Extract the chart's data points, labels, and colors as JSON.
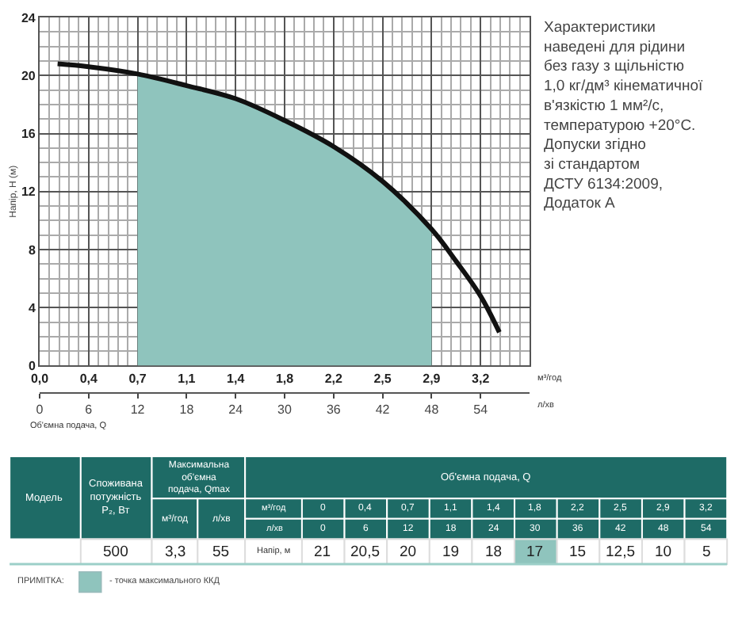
{
  "chart_data": {
    "type": "line",
    "x": [
      2.2,
      6,
      12,
      18,
      24,
      30,
      36,
      42,
      48,
      51,
      54,
      56.3
    ],
    "series": [
      {
        "type": "area",
        "color": "#8fc4bd",
        "x": [
          12,
          18,
          24,
          30,
          36,
          42,
          48
        ],
        "values": [
          20.1,
          19.3,
          18.4,
          16.9,
          15.1,
          12.7,
          9.4
        ]
      },
      {
        "color": "#111111",
        "values": [
          20.8,
          20.6,
          20.1,
          19.3,
          18.4,
          16.9,
          15.1,
          12.7,
          9.4,
          7.2,
          4.8,
          2.3
        ]
      }
    ],
    "xlabel": "Об'ємна подача, Q",
    "ylabel": "Напір, H (м)",
    "x2label": "м³/год",
    "xlim": [
      0,
      60
    ],
    "xticks": [
      0,
      6,
      12,
      18,
      24,
      30,
      36,
      42,
      48,
      54
    ],
    "x2lim": [
      0,
      3.6
    ],
    "x2ticks": [
      {
        "value": 0,
        "label": "0,0"
      },
      {
        "value": 0.36,
        "label": "0,4"
      },
      {
        "value": 0.72,
        "label": "0,7"
      },
      {
        "value": 1.08,
        "label": "1,1"
      },
      {
        "value": 1.44,
        "label": "1,4"
      },
      {
        "value": 1.8,
        "label": "1,8"
      },
      {
        "value": 2.16,
        "label": "2,2"
      },
      {
        "value": 2.52,
        "label": "2,5"
      },
      {
        "value": 2.88,
        "label": "2,9"
      },
      {
        "value": 3.24,
        "label": "3,2"
      }
    ],
    "ylim": [
      0,
      24
    ],
    "yticks": [
      0,
      4,
      8,
      12,
      16,
      20,
      24
    ],
    "grid": true,
    "annotations": [
      "Характеристики\nнаведені для рідини\nбез газу з щільністю\n1,0 кг/дм³ кінематичної\nв'язкістю 1 мм²/с,\nтемпературою +20°С.\nДопуски згідно\nзі стандартом\nДСТУ 6134:2009,\nДодаток А",
      "л/хв",
      "Модель",
      "Споживана\nпотужність\nP₂, Вт",
      "Максимальна\nоб'ємна\nподача, Qmax",
      "м³/год",
      "л/хв",
      "Об'ємна подача, Q",
      "м³/год",
      "0",
      "0,4",
      "0,7",
      "1,1",
      "1,4",
      "1,8",
      "2,2",
      "2,5",
      "2,9",
      "3,2",
      "л/хв",
      "0",
      "6",
      "12",
      "18",
      "24",
      "30",
      "36",
      "42",
      "48",
      "54",
      "500",
      "3,3",
      "55",
      "Напір, м",
      "21",
      "20,5",
      "20",
      "19",
      "18",
      "17",
      "15",
      "12,5",
      "10",
      "5",
      "ПРИМІТКА:",
      "- точка максимального ККД"
    ]
  }
}
